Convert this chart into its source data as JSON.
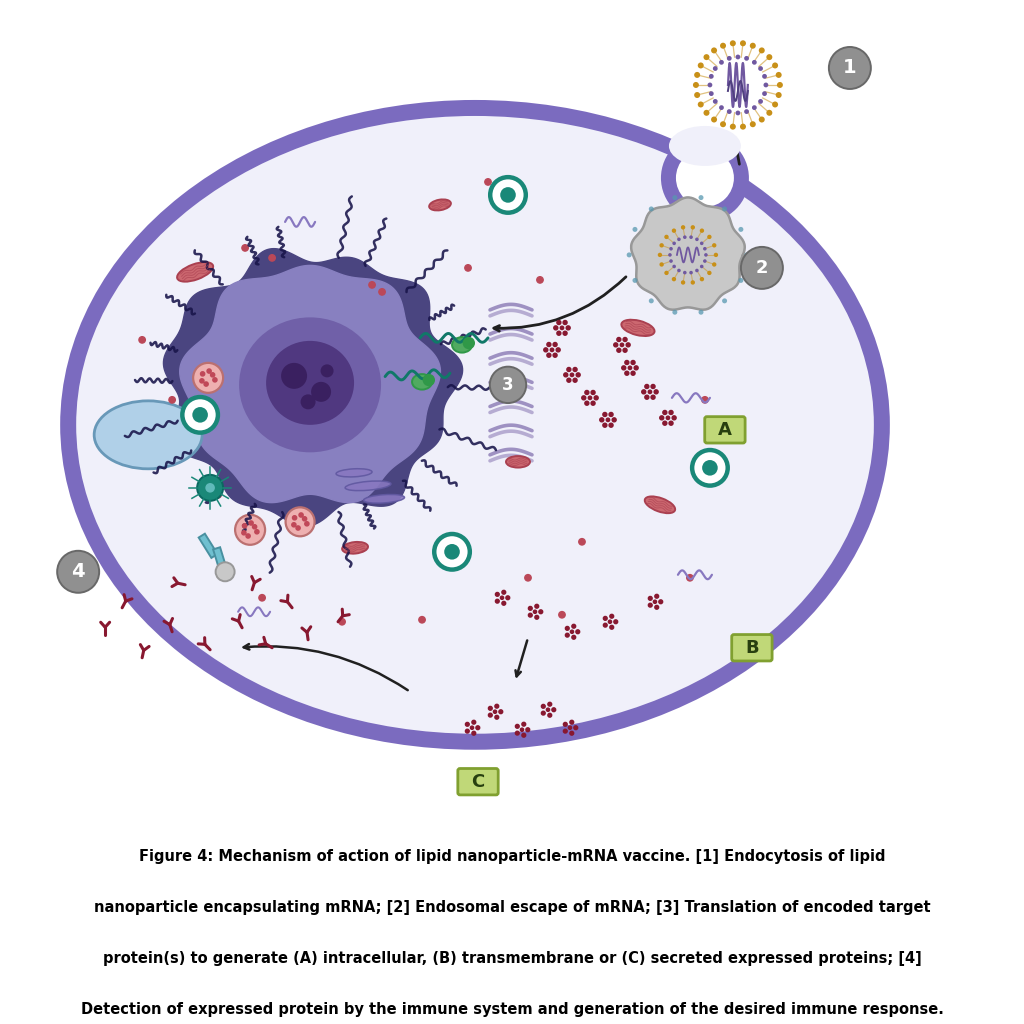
{
  "caption_lines": [
    "Figure 4: Mechanism of action of lipid nanoparticle-mRNA vaccine. [1] Endocytosis of lipid",
    "nanoparticle encapsulating mRNA; [2] Endosomal escape of mRNA; [3] Translation of encoded target",
    "protein(s) to generate (A) intracellular, (B) transmembrane or (C) secreted expressed proteins; [4]",
    "Detection of expressed protein by the immune system and generation of the desired immune response."
  ],
  "cell_mem": "#7B6BBF",
  "cell_fill": "#F0F0FA",
  "nuc_dark": "#4A4580",
  "nuc_mid": "#8880C0",
  "nuc_light": "#A090C8",
  "nuc_inner": "#7060A8",
  "nuc_core": "#503880",
  "er_color": "#9080B8",
  "vac_fill": "#B0D0E8",
  "vac_edge": "#6898B8",
  "mito_fill": "#CC6870",
  "mito_edge": "#AA4050",
  "golgi_fill": "#8878C0",
  "golgi_edge": "#6058A0",
  "centri_fill": "#70C0D0",
  "centri_edge": "#4890A0",
  "teal_edge": "#1A8878",
  "teal_fill": "#1A8878",
  "perox_fill": "#EEB0B0",
  "perox_edge": "#BB7070",
  "perox_dot": "#C04858",
  "ribo_dot": "#BB4858",
  "wavy_color": "#8878C0",
  "protein_color": "#881830",
  "green_blob": "#50AA60",
  "green_dark": "#309848",
  "mrna_color": "#107868",
  "lnp_gold": "#C89018",
  "lnp_purple": "#7058A0",
  "endo_fill": "#C8C8C8",
  "endo_edge": "#989898",
  "endo_bump": "#5898B0",
  "antibody_color": "#881830",
  "label_fill": "#C0D878",
  "label_edge": "#80A030",
  "num_fill": "#909090",
  "num_edge": "#686868",
  "arrow_color": "#202020",
  "bg": "#FFFFFF"
}
